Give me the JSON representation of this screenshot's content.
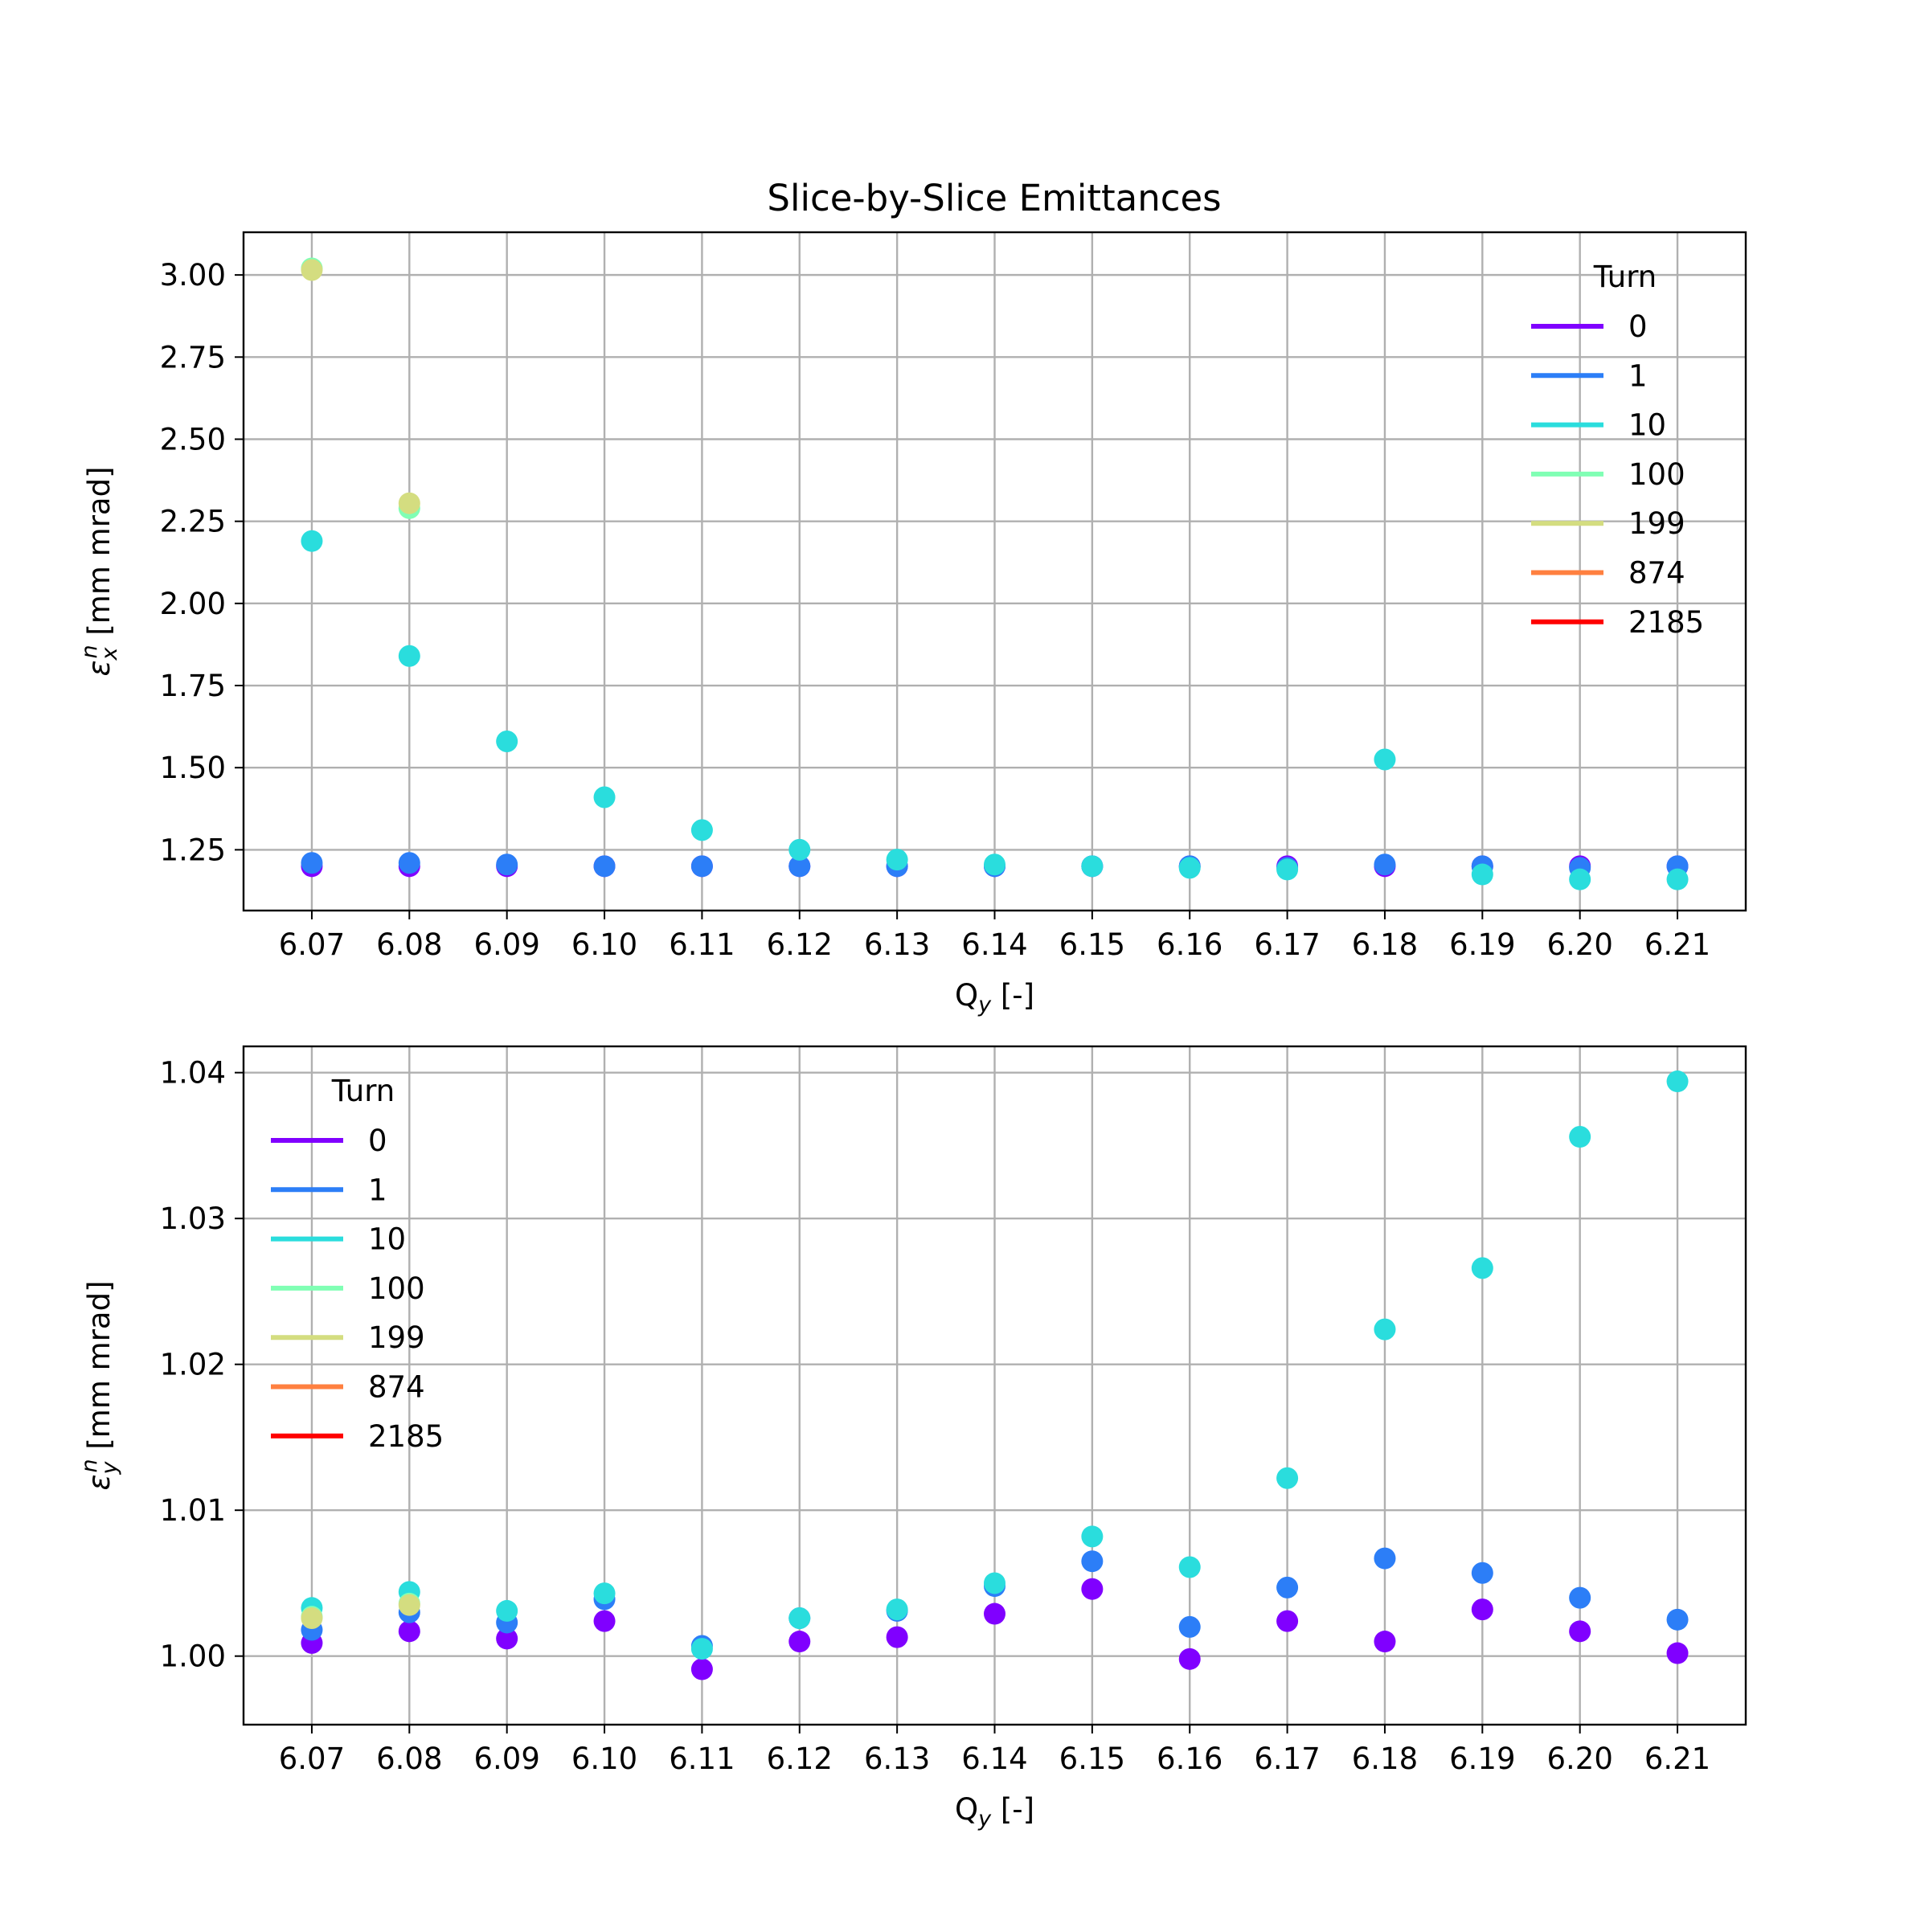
{
  "chart_data": [
    {
      "type": "scatter",
      "title": "Slice-by-Slice Emittances",
      "xlabel": "Q_y [-]",
      "ylabel": "ε_x^n [mm mrad]",
      "ylim": [
        1.065,
        3.13
      ],
      "yticks": [
        "1.25",
        "1.50",
        "1.75",
        "2.00",
        "2.25",
        "2.50",
        "2.75",
        "3.00"
      ],
      "x": [
        "6.07",
        "6.08",
        "6.09",
        "6.10",
        "6.11",
        "6.12",
        "6.13",
        "6.14",
        "6.15",
        "6.16",
        "6.17",
        "6.18",
        "6.19",
        "6.20",
        "6.21"
      ],
      "legend_title": "Turn",
      "legend_position": "upper right",
      "grid": true,
      "series": [
        {
          "name": "0",
          "color": "#8000ff",
          "values": [
            1.2,
            1.2,
            1.2,
            1.2,
            1.2,
            1.2,
            1.2,
            1.2,
            1.2,
            1.2,
            1.2,
            1.2,
            1.2,
            1.2,
            1.2
          ]
        },
        {
          "name": "1",
          "color": "#2c7ef7",
          "values": [
            1.21,
            1.21,
            1.205,
            1.2,
            1.2,
            1.2,
            1.2,
            1.2,
            1.2,
            1.2,
            1.195,
            1.205,
            1.2,
            1.195,
            1.2
          ]
        },
        {
          "name": "10",
          "color": "#2adddd",
          "values": [
            2.19,
            1.84,
            1.58,
            1.41,
            1.31,
            1.25,
            1.22,
            1.205,
            1.2,
            1.195,
            1.19,
            1.525,
            1.175,
            1.16,
            1.16
          ]
        },
        {
          "name": "100",
          "color": "#80ffb4",
          "values": [
            3.02,
            2.29,
            null,
            null,
            null,
            null,
            null,
            null,
            null,
            null,
            null,
            null,
            null,
            null,
            null
          ]
        },
        {
          "name": "199",
          "color": "#d4dd80",
          "values": [
            3.015,
            2.305,
            null,
            null,
            null,
            null,
            null,
            null,
            null,
            null,
            null,
            null,
            null,
            null,
            null
          ]
        },
        {
          "name": "874",
          "color": "#ff8040",
          "values": []
        },
        {
          "name": "2185",
          "color": "#ff0000",
          "values": []
        }
      ]
    },
    {
      "type": "scatter",
      "xlabel": "Q_y [-]",
      "ylabel": "ε_y^n [mm mrad]",
      "ylim": [
        0.9953,
        1.0418
      ],
      "yticks": [
        "1.00",
        "1.01",
        "1.02",
        "1.03",
        "1.04"
      ],
      "x": [
        "6.07",
        "6.08",
        "6.09",
        "6.10",
        "6.11",
        "6.12",
        "6.13",
        "6.14",
        "6.15",
        "6.16",
        "6.17",
        "6.18",
        "6.19",
        "6.20",
        "6.21"
      ],
      "legend_title": "Turn",
      "legend_position": "upper left",
      "grid": true,
      "series": [
        {
          "name": "0",
          "color": "#8000ff",
          "values": [
            1.0009,
            1.0017,
            1.0012,
            1.0024,
            0.9991,
            1.001,
            1.0013,
            1.0029,
            1.0046,
            0.9998,
            1.0024,
            1.001,
            1.0032,
            1.0017,
            1.0002
          ]
        },
        {
          "name": "1",
          "color": "#2c7ef7",
          "values": [
            1.0018,
            1.003,
            1.0023,
            1.0039,
            1.0007,
            1.0026,
            1.0031,
            1.0048,
            1.0065,
            1.002,
            1.0047,
            1.0067,
            1.0057,
            1.004,
            1.0025
          ]
        },
        {
          "name": "10",
          "color": "#2adddd",
          "values": [
            1.0033,
            1.0044,
            1.0031,
            1.0043,
            1.0005,
            1.0026,
            1.0032,
            1.005,
            1.0082,
            1.0061,
            1.0122,
            1.0224,
            1.0266,
            1.0356,
            1.0394
          ]
        },
        {
          "name": "100",
          "color": "#80ffb4",
          "values": [
            1.0027,
            1.0036,
            null,
            null,
            null,
            null,
            null,
            null,
            null,
            null,
            null,
            null,
            null,
            null,
            null
          ]
        },
        {
          "name": "199",
          "color": "#d4dd80",
          "values": [
            1.0026,
            1.0035,
            null,
            null,
            null,
            null,
            null,
            null,
            null,
            null,
            null,
            null,
            null,
            null,
            null
          ]
        },
        {
          "name": "874",
          "color": "#ff8040",
          "values": []
        },
        {
          "name": "2185",
          "color": "#ff0000",
          "values": []
        }
      ]
    }
  ]
}
